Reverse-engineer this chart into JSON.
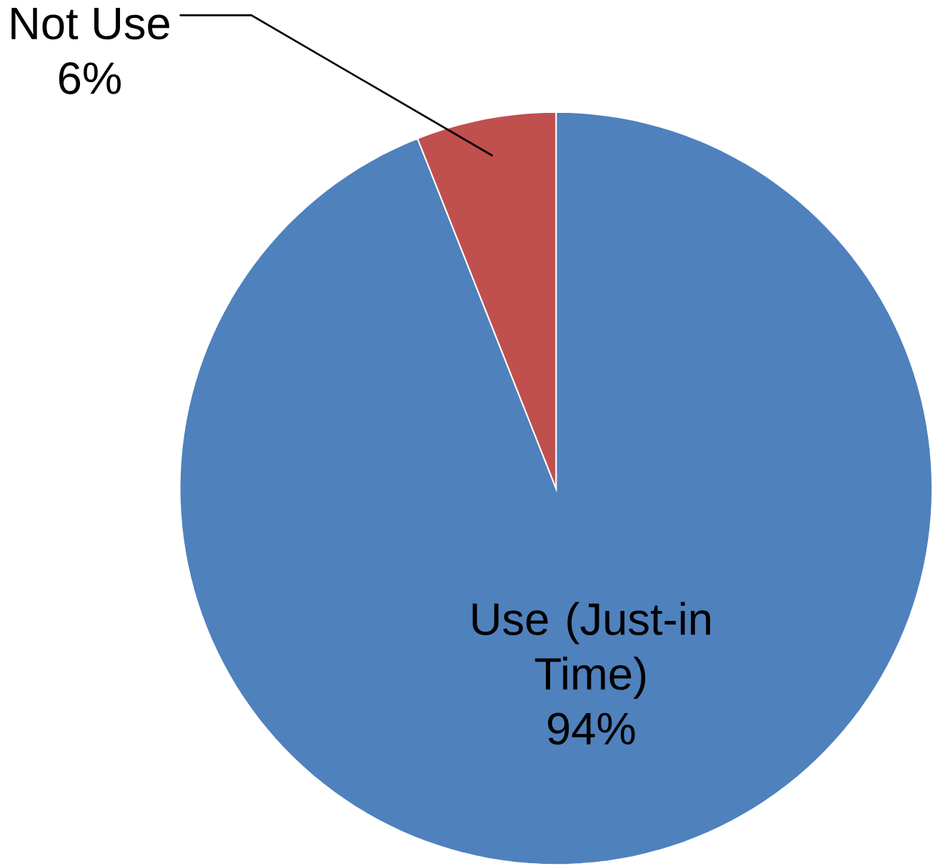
{
  "chart_data": {
    "type": "pie",
    "categories": [
      "Use (Just-in Time)",
      "Not Use"
    ],
    "values": [
      94,
      6
    ],
    "value_labels": [
      "94%",
      "6%"
    ],
    "colors": [
      "#4f81bd",
      "#c0504d"
    ]
  }
}
